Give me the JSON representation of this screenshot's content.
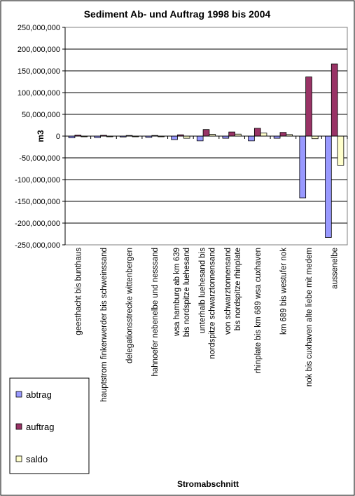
{
  "chart_data": {
    "type": "bar",
    "title": "Sediment Ab- und Auftrag 1998 bis 2004",
    "xlabel": "Stromabschnitt",
    "ylabel": "m3",
    "ylim": [
      -250000000,
      250000000
    ],
    "ytick_step": 50000000,
    "ytick_labels": [
      "250,000,000",
      "200,000,000",
      "150,000,000",
      "100,000,000",
      "50,000,000",
      "0",
      "-50,000,000",
      "-100,000,000",
      "-150,000,000",
      "-200,000,000",
      "-250,000,000"
    ],
    "grid": true,
    "legend_position": "bottom-left",
    "categories": [
      "geesthacht bis bunthaus",
      "hauptstrom finkenwerder bis schweinssand",
      "delegationsstrecke wittenbergen",
      "hahnoefer nebenelbe und nesssand",
      "wsa hamburg ab km 639 bis nordspitze luehesand",
      "unterhalb luehesand bis nordspitze schwarztonnensand",
      "von schwarztonnensand bis nordspitze rhinplate",
      "rhinplate bis km 689 wsa cuxhaven",
      "km 689 bis westufer nok",
      "nok bis cuxhaven alte liebe mit medem",
      "aussenelbe"
    ],
    "series": [
      {
        "name": "abtrag",
        "color": "#9999ff",
        "values": [
          -4000000,
          -3500000,
          -2000000,
          -3000000,
          -8000000,
          -11000000,
          -5000000,
          -11000000,
          -5000000,
          -142000000,
          -233000000
        ]
      },
      {
        "name": "auftrag",
        "color": "#993366",
        "values": [
          2500000,
          2000000,
          1500000,
          1500000,
          3000000,
          15000000,
          9500000,
          18000000,
          8500000,
          136000000,
          166000000
        ]
      },
      {
        "name": "saldo",
        "color": "#ffffcc",
        "values": [
          -1500000,
          -1500000,
          -500000,
          -1500000,
          -5000000,
          4000000,
          4500000,
          7000000,
          3500000,
          -6000000,
          -67000000
        ]
      }
    ]
  }
}
